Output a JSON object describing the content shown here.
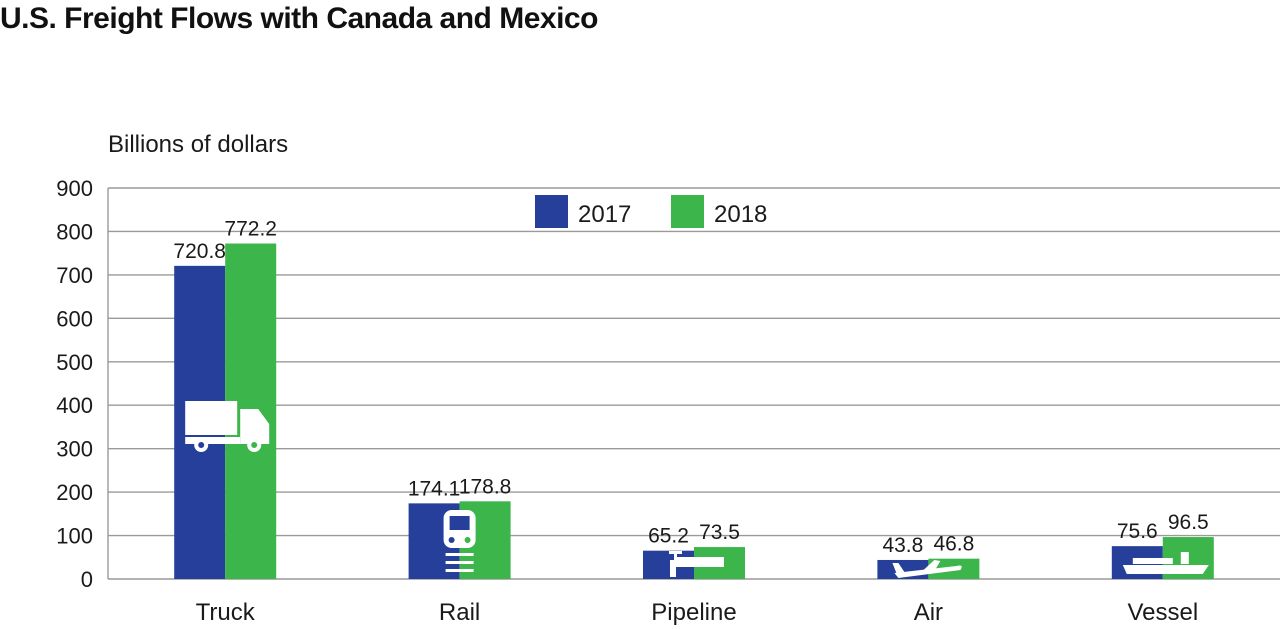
{
  "title": "U.S. Freight Flows with Canada and Mexico",
  "chart_data": {
    "type": "bar",
    "title": "U.S. Freight Flows with Canada and Mexico",
    "ylabel": "Billions of dollars",
    "xlabel": "",
    "ylim": [
      0,
      900
    ],
    "yticks": [
      "0",
      "100",
      "200",
      "300",
      "400",
      "500",
      "600",
      "700",
      "800",
      "900"
    ],
    "grid": true,
    "legend": "top-center",
    "categories": [
      "Truck",
      "Rail",
      "Pipeline",
      "Air",
      "Vessel"
    ],
    "category_icons": [
      "truck-icon",
      "train-icon",
      "pipeline-icon",
      "airplane-icon",
      "ship-icon"
    ],
    "series": [
      {
        "name": "2017",
        "color": "#253f9b",
        "values": [
          720.8,
          174.1,
          65.2,
          43.8,
          75.6
        ],
        "labels": [
          "720.8",
          "174.1",
          "65.2",
          "43.8",
          "75.6"
        ]
      },
      {
        "name": "2018",
        "color": "#3cb54a",
        "values": [
          772.2,
          178.8,
          73.5,
          46.8,
          96.5
        ],
        "labels": [
          "772.2",
          "178.8",
          "73.5",
          "46.8",
          "96.5"
        ]
      }
    ]
  }
}
